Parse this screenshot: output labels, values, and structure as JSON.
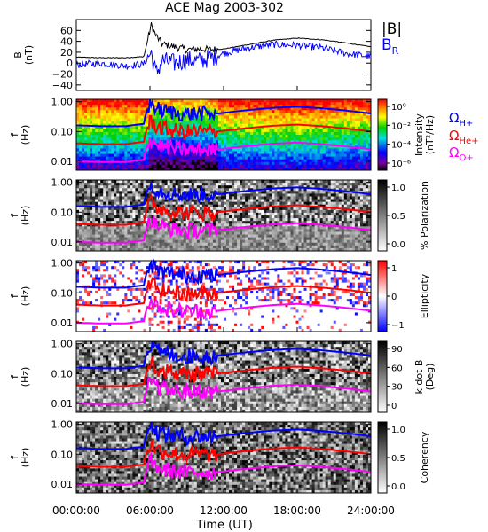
{
  "figure": {
    "title": "ACE Mag 2003-302",
    "xlabel": "Time (UT)",
    "x_ticks": [
      "00:00:00",
      "06:00:00",
      "12:00:00",
      "18:00:00",
      "24:00:00"
    ]
  },
  "legend": {
    "b_mag": "|B|",
    "b_r_main": "B",
    "b_r_sub": "R",
    "h_main": "Ω",
    "h_sub": "H+",
    "he_main": "Ω",
    "he_sub": "He+",
    "o_main": "Ω",
    "o_sub": "O+"
  },
  "panels": {
    "mag": {
      "ylabel_top": "B",
      "ylabel_bottom": "(nT)"
    },
    "f_label_top": "f",
    "f_label_bottom": "(Hz)",
    "intensity": {
      "cb_label": "Intensity",
      "cb_label2": "(nT²/Hz)"
    },
    "polarization": {
      "cb_label": "% Polarization"
    },
    "ellipticity": {
      "cb_label": "Ellipticity"
    },
    "kdotb": {
      "cb_label": "k dot B",
      "cb_label2": "(Deg)"
    },
    "coherency": {
      "cb_label": "Coherency"
    }
  },
  "colors": {
    "b_mag": "#000000",
    "b_r": "#0000ff",
    "omega_h": "#0000ff",
    "omega_he": "#ff0000",
    "omega_o": "#ff00ff"
  },
  "chart_data": [
    {
      "type": "line",
      "title": "ACE Mag 2003-302",
      "xlabel": "Time (UT)",
      "ylabel": "B (nT)",
      "xlim": [
        0,
        24
      ],
      "ylim": [
        -50,
        80
      ],
      "y_ticks": [
        "60",
        "40",
        "20",
        "0",
        "−20",
        "−40"
      ],
      "x": [
        0,
        2,
        4,
        5.5,
        6.1,
        6.5,
        7,
        8,
        9,
        10,
        11,
        12,
        14,
        16,
        18,
        20,
        22,
        24
      ],
      "series": [
        {
          "name": "|B|",
          "values": [
            11,
            10,
            10,
            12,
            70,
            50,
            35,
            30,
            25,
            26,
            25,
            26,
            34,
            42,
            46,
            43,
            37,
            30
          ]
        },
        {
          "name": "BR",
          "values": [
            -3,
            0,
            -5,
            -2,
            20,
            -20,
            5,
            0,
            6,
            4,
            10,
            18,
            28,
            34,
            33,
            28,
            18,
            12
          ]
        }
      ]
    },
    {
      "type": "heatmap",
      "name": "Intensity",
      "ylabel": "f (Hz)",
      "yscale": "log",
      "ylim": [
        0.005,
        1.2
      ],
      "y_ticks": [
        "1.00",
        "0.10",
        "0.01"
      ],
      "colorbar": {
        "scale": "log",
        "ticks": [
          "10⁰",
          "10⁻²",
          "10⁻⁴",
          "10⁻⁶"
        ]
      }
    },
    {
      "type": "heatmap",
      "name": "% Polarization",
      "ylabel": "f (Hz)",
      "yscale": "log",
      "y_ticks": [
        "1.00",
        "0.10",
        "0.01"
      ],
      "colorbar": {
        "ticks": [
          "1.0",
          "0.5",
          "0.0"
        ]
      }
    },
    {
      "type": "heatmap",
      "name": "Ellipticity",
      "ylabel": "f (Hz)",
      "yscale": "log",
      "y_ticks": [
        "1.00",
        "0.10",
        "0.01"
      ],
      "colorbar": {
        "ticks": [
          "1",
          "0",
          "−1"
        ]
      }
    },
    {
      "type": "heatmap",
      "name": "k dot B",
      "ylabel": "f (Hz)",
      "yscale": "log",
      "y_ticks": [
        "1.00",
        "0.10",
        "0.01"
      ],
      "colorbar": {
        "ticks": [
          "90",
          "60",
          "30",
          "0"
        ]
      }
    },
    {
      "type": "heatmap",
      "name": "Coherency",
      "ylabel": "f (Hz)",
      "yscale": "log",
      "y_ticks": [
        "1.00",
        "0.10",
        "0.01"
      ],
      "colorbar": {
        "ticks": [
          "1.0",
          "0.5",
          "0.0"
        ]
      }
    }
  ],
  "gyrofrequencies": {
    "x": [
      0,
      2,
      4,
      5.5,
      6.1,
      6.5,
      7,
      8,
      9,
      10,
      11,
      12,
      14,
      16,
      18,
      20,
      22,
      24
    ],
    "omega_h_hz": [
      0.16,
      0.15,
      0.15,
      0.18,
      0.9,
      0.6,
      0.5,
      0.42,
      0.38,
      0.4,
      0.38,
      0.42,
      0.52,
      0.62,
      0.68,
      0.6,
      0.5,
      0.4
    ]
  }
}
